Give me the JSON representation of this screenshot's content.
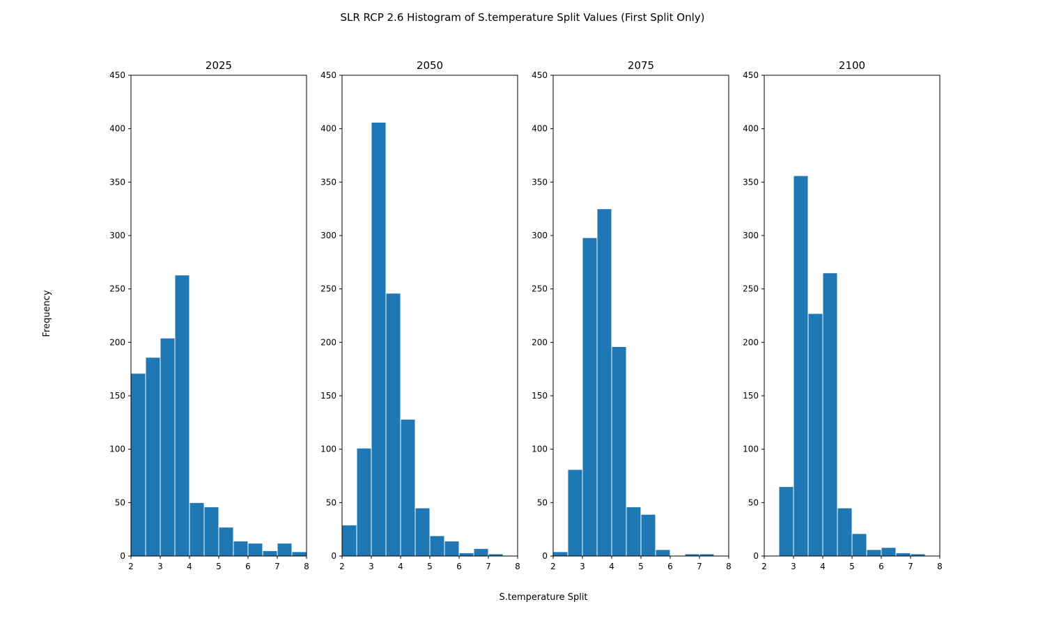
{
  "chart_data": {
    "type": "bar",
    "title": "SLR RCP 2.6 Histogram of S.temperature Split Values (First Split Only)",
    "xlabel": "S.temperature Split",
    "ylabel": "Frequency",
    "xlim": [
      2,
      8
    ],
    "ylim": [
      0,
      450
    ],
    "xticks": [
      2,
      3,
      4,
      5,
      6,
      7,
      8
    ],
    "yticks": [
      0,
      50,
      100,
      150,
      200,
      250,
      300,
      350,
      400,
      450
    ],
    "grid": false,
    "bar_color": "#1f77b4",
    "edge_color": "#ffffff",
    "panels": [
      {
        "title": "2025",
        "bins": [
          {
            "x0": 2.0,
            "x1": 2.5,
            "count": 171
          },
          {
            "x0": 2.5,
            "x1": 3.0,
            "count": 186
          },
          {
            "x0": 3.0,
            "x1": 3.5,
            "count": 204
          },
          {
            "x0": 3.5,
            "x1": 4.0,
            "count": 263
          },
          {
            "x0": 4.0,
            "x1": 4.5,
            "count": 50
          },
          {
            "x0": 4.5,
            "x1": 5.0,
            "count": 46
          },
          {
            "x0": 5.0,
            "x1": 5.5,
            "count": 27
          },
          {
            "x0": 5.5,
            "x1": 6.0,
            "count": 14
          },
          {
            "x0": 6.0,
            "x1": 6.5,
            "count": 12
          },
          {
            "x0": 6.5,
            "x1": 7.0,
            "count": 5
          },
          {
            "x0": 7.0,
            "x1": 7.5,
            "count": 12
          },
          {
            "x0": 7.5,
            "x1": 8.0,
            "count": 4
          }
        ]
      },
      {
        "title": "2050",
        "bins": [
          {
            "x0": 2.0,
            "x1": 2.5,
            "count": 29
          },
          {
            "x0": 2.5,
            "x1": 3.0,
            "count": 101
          },
          {
            "x0": 3.0,
            "x1": 3.5,
            "count": 406
          },
          {
            "x0": 3.5,
            "x1": 4.0,
            "count": 246
          },
          {
            "x0": 4.0,
            "x1": 4.5,
            "count": 128
          },
          {
            "x0": 4.5,
            "x1": 5.0,
            "count": 45
          },
          {
            "x0": 5.0,
            "x1": 5.5,
            "count": 19
          },
          {
            "x0": 5.5,
            "x1": 6.0,
            "count": 14
          },
          {
            "x0": 6.0,
            "x1": 6.5,
            "count": 3
          },
          {
            "x0": 6.5,
            "x1": 7.0,
            "count": 7
          },
          {
            "x0": 7.0,
            "x1": 7.5,
            "count": 2
          }
        ]
      },
      {
        "title": "2075",
        "bins": [
          {
            "x0": 2.0,
            "x1": 2.5,
            "count": 4
          },
          {
            "x0": 2.5,
            "x1": 3.0,
            "count": 81
          },
          {
            "x0": 3.0,
            "x1": 3.5,
            "count": 298
          },
          {
            "x0": 3.5,
            "x1": 4.0,
            "count": 325
          },
          {
            "x0": 4.0,
            "x1": 4.5,
            "count": 196
          },
          {
            "x0": 4.5,
            "x1": 5.0,
            "count": 46
          },
          {
            "x0": 5.0,
            "x1": 5.5,
            "count": 39
          },
          {
            "x0": 5.5,
            "x1": 6.0,
            "count": 6
          },
          {
            "x0": 6.0,
            "x1": 6.5,
            "count": 0
          },
          {
            "x0": 6.5,
            "x1": 7.0,
            "count": 2
          },
          {
            "x0": 7.0,
            "x1": 7.5,
            "count": 2
          }
        ]
      },
      {
        "title": "2100",
        "bins": [
          {
            "x0": 2.5,
            "x1": 3.0,
            "count": 65
          },
          {
            "x0": 3.0,
            "x1": 3.5,
            "count": 356
          },
          {
            "x0": 3.5,
            "x1": 4.0,
            "count": 227
          },
          {
            "x0": 4.0,
            "x1": 4.5,
            "count": 265
          },
          {
            "x0": 4.5,
            "x1": 5.0,
            "count": 45
          },
          {
            "x0": 5.0,
            "x1": 5.5,
            "count": 21
          },
          {
            "x0": 5.5,
            "x1": 6.0,
            "count": 6
          },
          {
            "x0": 6.0,
            "x1": 6.5,
            "count": 8
          },
          {
            "x0": 6.5,
            "x1": 7.0,
            "count": 3
          },
          {
            "x0": 7.0,
            "x1": 7.5,
            "count": 2
          }
        ]
      }
    ]
  }
}
